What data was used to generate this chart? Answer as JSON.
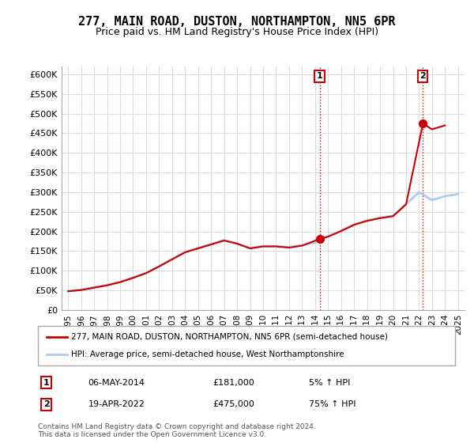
{
  "title": "277, MAIN ROAD, DUSTON, NORTHAMPTON, NN5 6PR",
  "subtitle": "Price paid vs. HM Land Registry's House Price Index (HPI)",
  "legend_line1": "277, MAIN ROAD, DUSTON, NORTHAMPTON, NN5 6PR (semi-detached house)",
  "legend_line2": "HPI: Average price, semi-detached house, West Northamptonshire",
  "footnote": "Contains HM Land Registry data © Crown copyright and database right 2024.\nThis data is licensed under the Open Government Licence v3.0.",
  "sale1_label": "1",
  "sale1_date": "06-MAY-2014",
  "sale1_price": "£181,000",
  "sale1_hpi": "5% ↑ HPI",
  "sale1_x": 2014.35,
  "sale1_y": 181000,
  "sale2_label": "2",
  "sale2_date": "19-APR-2022",
  "sale2_price": "£475,000",
  "sale2_hpi": "75% ↑ HPI",
  "sale2_x": 2022.3,
  "sale2_y": 475000,
  "ylim": [
    0,
    620000
  ],
  "xlim": [
    1994.5,
    2025.5
  ],
  "yticks": [
    0,
    50000,
    100000,
    150000,
    200000,
    250000,
    300000,
    350000,
    400000,
    450000,
    500000,
    550000,
    600000
  ],
  "ytick_labels": [
    "£0",
    "£50K",
    "£100K",
    "£150K",
    "£200K",
    "£250K",
    "£300K",
    "£350K",
    "£400K",
    "£450K",
    "£500K",
    "£550K",
    "£600K"
  ],
  "xticks": [
    1995,
    1996,
    1997,
    1998,
    1999,
    2000,
    2001,
    2002,
    2003,
    2004,
    2005,
    2006,
    2007,
    2008,
    2009,
    2010,
    2011,
    2012,
    2013,
    2014,
    2015,
    2016,
    2017,
    2018,
    2019,
    2020,
    2021,
    2022,
    2023,
    2024,
    2025
  ],
  "red_line_color": "#cc0000",
  "blue_line_color": "#aaccee",
  "marker_color": "#cc0000",
  "vline_color": "#cc0000",
  "background_color": "#ffffff",
  "grid_color": "#dddddd",
  "hpi_data_x": [
    1995,
    1996,
    1997,
    1998,
    1999,
    2000,
    2001,
    2002,
    2003,
    2004,
    2005,
    2006,
    2007,
    2008,
    2009,
    2010,
    2011,
    2012,
    2013,
    2014,
    2015,
    2016,
    2017,
    2018,
    2019,
    2020,
    2021,
    2022,
    2023,
    2024,
    2025
  ],
  "hpi_data_y": [
    48000,
    52000,
    58000,
    64000,
    72000,
    83000,
    95000,
    112000,
    130000,
    148000,
    158000,
    168000,
    178000,
    170000,
    158000,
    163000,
    163000,
    160000,
    165000,
    172000,
    188000,
    202000,
    218000,
    228000,
    235000,
    240000,
    270000,
    300000,
    280000,
    290000,
    295000
  ],
  "price_data_x": [
    1995,
    1996,
    1997,
    1998,
    1999,
    2000,
    2001,
    2002,
    2003,
    2004,
    2005,
    2006,
    2007,
    2008,
    2009,
    2010,
    2011,
    2012,
    2013,
    2014.35,
    2015,
    2016,
    2017,
    2018,
    2019,
    2020,
    2021,
    2022.3,
    2023,
    2024
  ],
  "price_data_y": [
    48000,
    51000,
    57000,
    63000,
    71000,
    82000,
    94000,
    111000,
    129000,
    147000,
    157000,
    167000,
    177000,
    169000,
    157000,
    162000,
    162000,
    159000,
    164000,
    181000,
    187000,
    201000,
    217000,
    227000,
    234000,
    239000,
    269000,
    475000,
    460000,
    470000
  ]
}
